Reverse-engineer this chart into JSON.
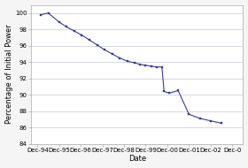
{
  "x_labels": [
    "Dec-94",
    "Dec-95",
    "Dec-96",
    "Dec-97",
    "Dec-98",
    "Dec-99",
    "Dec-00",
    "Dec-01",
    "Dec-02",
    "Dec-0"
  ],
  "x_values": [
    0,
    1,
    2,
    3,
    4,
    5,
    6,
    7,
    8,
    9
  ],
  "data_x": [
    0.15,
    0.5,
    1.0,
    1.35,
    1.7,
    2.05,
    2.4,
    2.75,
    3.1,
    3.45,
    3.8,
    4.15,
    4.5,
    4.75,
    5.0,
    5.25,
    5.5,
    5.75,
    5.85,
    6.1,
    6.5,
    7.0,
    7.5,
    8.0,
    8.5
  ],
  "data_y": [
    99.8,
    100.0,
    98.9,
    98.3,
    97.8,
    97.3,
    96.7,
    96.1,
    95.5,
    95.0,
    94.5,
    94.1,
    93.9,
    93.7,
    93.6,
    93.5,
    93.4,
    93.4,
    90.4,
    90.2,
    90.5,
    87.6,
    87.1,
    86.8,
    86.5
  ],
  "line_color": "#3a3a9a",
  "marker": "s",
  "marker_size": 2.0,
  "linewidth": 0.8,
  "xlabel": "Date",
  "ylabel": "Percentage of Initial Power",
  "ylim": [
    84,
    101
  ],
  "yticks": [
    84,
    86,
    88,
    90,
    92,
    94,
    96,
    98,
    100
  ],
  "xlim": [
    -0.3,
    9.5
  ],
  "grid_color": "#c8c8d8",
  "bg_color": "#f5f5f5",
  "plot_bg_color": "#ffffff",
  "spine_color": "#aaaaaa",
  "label_fontsize": 6.0,
  "tick_fontsize": 5.0
}
